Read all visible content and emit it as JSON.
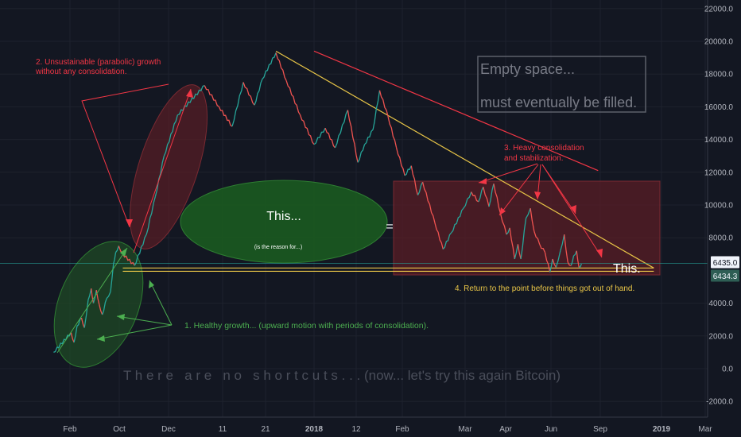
{
  "chart_data": {
    "type": "line",
    "title": "",
    "xlabel": "",
    "ylabel": "",
    "ylim": [
      -2000,
      22000
    ],
    "y_ticks": [
      {
        "value": 22000,
        "label": "22000.0"
      },
      {
        "value": 20000,
        "label": "20000.0"
      },
      {
        "value": 18000,
        "label": "18000.0"
      },
      {
        "value": 16000,
        "label": "16000.0"
      },
      {
        "value": 14000,
        "label": "14000.0"
      },
      {
        "value": 12000,
        "label": "12000.0"
      },
      {
        "value": 10000,
        "label": "10000.0"
      },
      {
        "value": 8000,
        "label": "8000.0"
      },
      {
        "value": 4000,
        "label": "4000.0"
      },
      {
        "value": 2000,
        "label": "2000.0"
      },
      {
        "value": 0,
        "label": "0.0"
      },
      {
        "value": -2000,
        "label": "-2000.0"
      }
    ],
    "x_ticks": [
      {
        "label": "Feb",
        "x": 2017.085,
        "bold": false
      },
      {
        "label": "Oct",
        "x": 2017.748,
        "bold": false
      },
      {
        "label": "Dec",
        "x": 2017.915,
        "bold": false
      },
      {
        "label": "11",
        "x": 2017.945,
        "bold": false
      },
      {
        "label": "21",
        "x": 2017.972,
        "bold": false
      },
      {
        "label": "2018",
        "x": 2018.0,
        "bold": true
      },
      {
        "label": "12",
        "x": 2018.03,
        "bold": false
      },
      {
        "label": "Feb",
        "x": 2018.085,
        "bold": false
      },
      {
        "label": "Mar",
        "x": 2018.162,
        "bold": false
      },
      {
        "label": "Apr",
        "x": 2018.247,
        "bold": false
      },
      {
        "label": "Jun",
        "x": 2018.414,
        "bold": false
      },
      {
        "label": "Sep",
        "x": 2018.666,
        "bold": false
      },
      {
        "label": "2019",
        "x": 2019.0,
        "bold": true
      },
      {
        "label": "Mar",
        "x": 2019.162,
        "bold": false
      }
    ],
    "price_tags": [
      {
        "value": 6435.0,
        "label": "6435.0",
        "color": "#f0f3fa",
        "text_color": "#131722"
      },
      {
        "value": 6434.3,
        "label": "6434.3",
        "color": "#2e5e54",
        "text_color": "#f0f3fa"
      }
    ],
    "current_price_line": 6435.0,
    "series": [
      {
        "color_up": "#26a69a",
        "color_down": "#ef5350",
        "points": [
          [
            2017.05,
            1000
          ],
          [
            2017.1,
            2200
          ],
          [
            2017.14,
            1600
          ],
          [
            2017.18,
            2600
          ],
          [
            2017.24,
            3100
          ],
          [
            2017.28,
            2500
          ],
          [
            2017.33,
            4200
          ],
          [
            2017.37,
            4900
          ],
          [
            2017.4,
            4000
          ],
          [
            2017.44,
            4800
          ],
          [
            2017.48,
            3900
          ],
          [
            2017.52,
            3300
          ],
          [
            2017.58,
            4300
          ],
          [
            2017.63,
            4700
          ],
          [
            2017.67,
            6400
          ],
          [
            2017.7,
            7100
          ],
          [
            2017.74,
            7500
          ],
          [
            2017.76,
            7000
          ],
          [
            2017.8,
            6300
          ],
          [
            2017.84,
            8200
          ],
          [
            2017.87,
            10500
          ],
          [
            2017.9,
            13000
          ],
          [
            2017.92,
            15500
          ],
          [
            2017.935,
            17300
          ],
          [
            2017.943,
            16000
          ],
          [
            2017.951,
            14800
          ],
          [
            2017.958,
            17500
          ],
          [
            2017.965,
            16100
          ],
          [
            2017.97,
            17700
          ],
          [
            2017.978,
            19300
          ],
          [
            2017.984,
            17600
          ],
          [
            2017.992,
            15500
          ],
          [
            2018.0,
            13700
          ],
          [
            2018.008,
            14700
          ],
          [
            2018.015,
            13500
          ],
          [
            2018.024,
            15800
          ],
          [
            2018.032,
            12600
          ],
          [
            2018.04,
            13700
          ],
          [
            2018.05,
            14600
          ],
          [
            2018.058,
            17000
          ],
          [
            2018.068,
            15400
          ],
          [
            2018.078,
            13500
          ],
          [
            2018.088,
            11800
          ],
          [
            2018.096,
            12400
          ],
          [
            2018.104,
            10600
          ],
          [
            2018.11,
            11400
          ],
          [
            2018.125,
            8900
          ],
          [
            2018.135,
            7300
          ],
          [
            2018.145,
            8300
          ],
          [
            2018.16,
            9800
          ],
          [
            2018.175,
            10800
          ],
          [
            2018.19,
            10200
          ],
          [
            2018.2,
            11100
          ],
          [
            2018.212,
            9900
          ],
          [
            2018.222,
            11300
          ],
          [
            2018.236,
            9500
          ],
          [
            2018.25,
            8200
          ],
          [
            2018.262,
            8600
          ],
          [
            2018.28,
            6700
          ],
          [
            2018.292,
            7600
          ],
          [
            2018.303,
            6700
          ],
          [
            2018.322,
            9200
          ],
          [
            2018.338,
            9800
          ],
          [
            2018.352,
            8400
          ],
          [
            2018.372,
            7600
          ],
          [
            2018.392,
            7100
          ],
          [
            2018.41,
            5900
          ],
          [
            2018.422,
            6700
          ],
          [
            2018.44,
            6200
          ],
          [
            2018.462,
            7200
          ],
          [
            2018.482,
            8200
          ],
          [
            2018.5,
            6500
          ],
          [
            2018.517,
            6300
          ],
          [
            2018.53,
            6900
          ],
          [
            2018.545,
            7200
          ],
          [
            2018.557,
            6200
          ],
          [
            2018.57,
            6400
          ]
        ]
      }
    ],
    "trendlines": [
      {
        "color": "#e8c547",
        "from": [
          2017.978,
          19400
        ],
        "to": [
          2018.958,
          6150
        ]
      },
      {
        "color": "#e8c547",
        "from": [
          2017.76,
          6150
        ],
        "to": [
          2018.958,
          6150
        ]
      },
      {
        "color": "#e8c547",
        "from": [
          2017.76,
          5950
        ],
        "to": [
          2018.958,
          5950
        ]
      },
      {
        "color": "#f23645",
        "from": [
          2018.0,
          19400
        ],
        "to": [
          2018.655,
          12100
        ]
      }
    ],
    "annotations": [
      {
        "text": "2. Unsustainable (parabolic) growth",
        "color": "#f23645"
      },
      {
        "text": "without any consolidation.",
        "color": "#f23645"
      },
      {
        "text": "Empty space...",
        "color": "#787b86"
      },
      {
        "text": "must eventually be filled.",
        "color": "#787b86"
      },
      {
        "text": "3. Heavy consolidation",
        "color": "#f23645"
      },
      {
        "text": "and stabilization.",
        "color": "#f23645"
      },
      {
        "text": "This...",
        "color": "#ffffff"
      },
      {
        "text": "(is the reason for...)",
        "color": "#ffffff"
      },
      {
        "text": "=",
        "color": "#ffffff"
      },
      {
        "text": "This.",
        "color": "#ffffff"
      },
      {
        "text": "4. Return to the point before things got out of hand.",
        "color": "#e8c547"
      },
      {
        "text": "1. Healthy growth... (upward motion with periods of consolidation).",
        "color": "#4caf50"
      },
      {
        "text": "T h e r e   a r e   n o   s h o r t c u t s . . . (now... let's try this again Bitcoin)",
        "color": "#4a4e5a"
      }
    ]
  }
}
